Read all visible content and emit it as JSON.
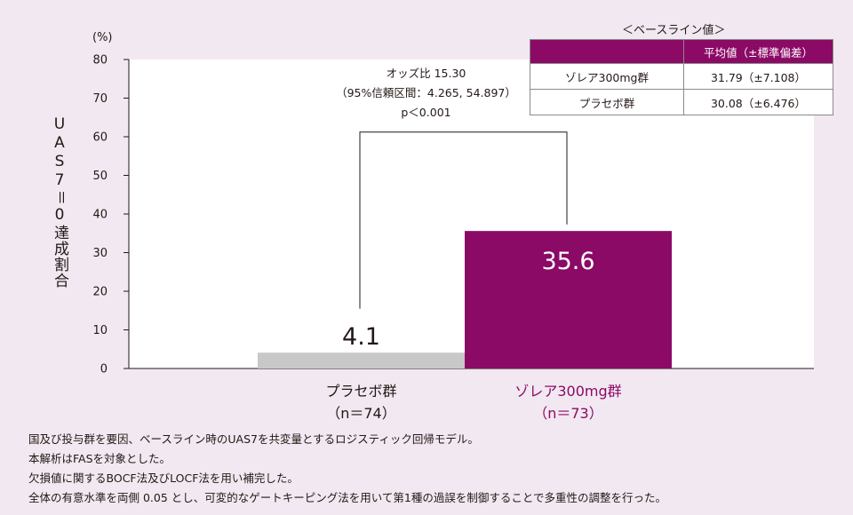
{
  "chart_data": {
    "type": "bar",
    "ylabel": "UAS7＝0達成割合",
    "y_unit": "(%)",
    "ylim": [
      0,
      80
    ],
    "yticks": [
      0,
      10,
      20,
      30,
      40,
      50,
      60,
      70,
      80
    ],
    "categories": [
      "プラセボ群\n（n＝74）",
      "ゾレア300mg群\n（n＝73）"
    ],
    "category_names": [
      "プラセボ群",
      "ゾレア300mg群"
    ],
    "category_n": [
      "（n＝74）",
      "（n＝73）"
    ],
    "values": [
      4.1,
      35.6
    ],
    "value_labels": [
      "4.1",
      "35.6"
    ],
    "bar_colors": [
      "#c8c8c8",
      "#8b0a66"
    ],
    "category_label_colors": [
      "#231815",
      "#8b0a66"
    ],
    "grid": false,
    "annotation": {
      "lines": [
        "オッズ比 15.30",
        "（95%信頼区間：4.265, 54.897）",
        "p＜0.001"
      ],
      "bracket_top": 61.2,
      "left_end": 15.5,
      "right_end": 37.3
    }
  },
  "baseline_table": {
    "title": "＜ベースライン値＞",
    "header": [
      "",
      "平均値（±標準偏差）"
    ],
    "rows": [
      [
        "ゾレア300mg群",
        "31.79（±7.108）"
      ],
      [
        "プラセボ群",
        "30.08（±6.476）"
      ]
    ]
  },
  "notes": [
    "国及び投与群を要因、ベースライン時のUAS7を共変量とするロジスティック回帰モデル。",
    "本解析はFASを対象とした。",
    "欠損値に関するBOCF法及びLOCF法を用い補完した。",
    "全体の有意水準を両側 0.05 とし、可変的なゲートキーピング法を用いて第1種の過誤を制御することで多重性の調整を行った。"
  ],
  "colors": {
    "background": "#f2e8f1",
    "plot_area": "#ffffff",
    "accent": "#8b0a66",
    "placebo": "#c8c8c8"
  }
}
